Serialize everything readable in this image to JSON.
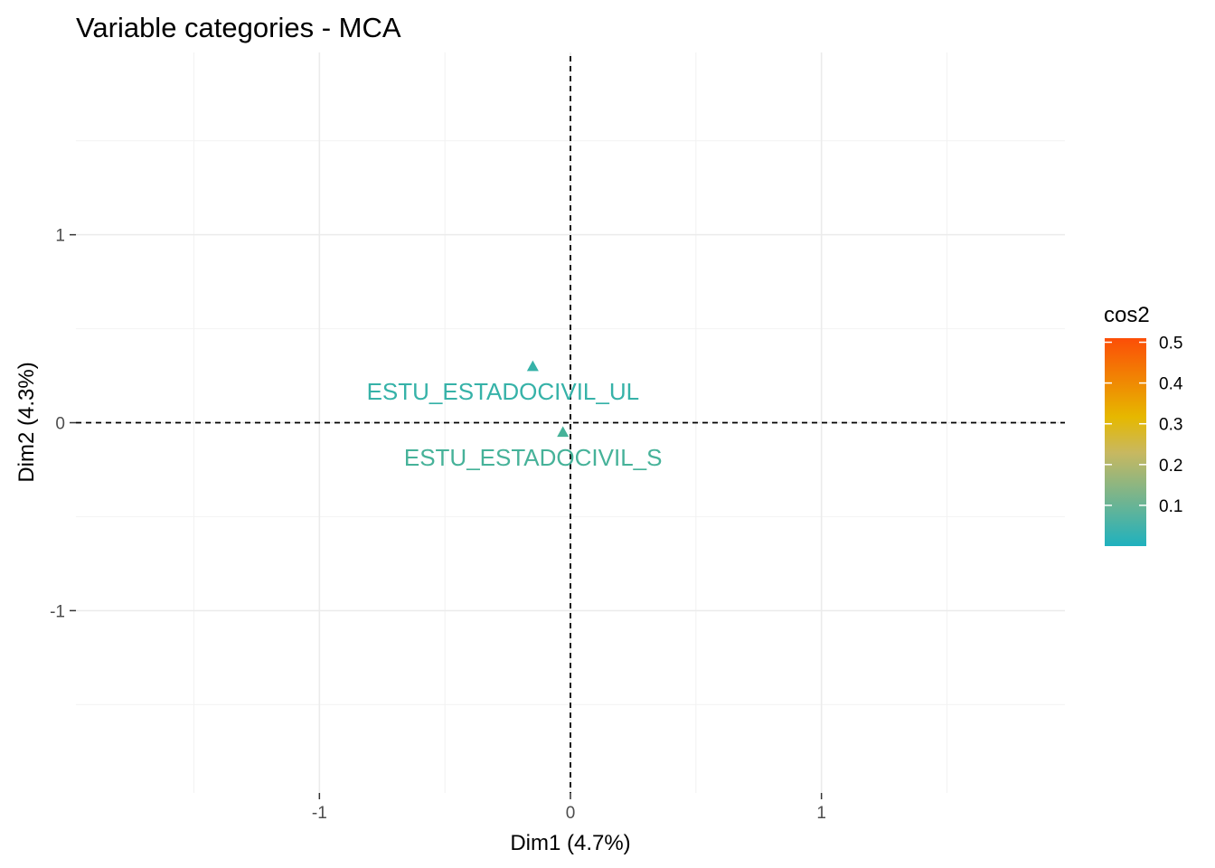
{
  "chart_data": {
    "type": "scatter",
    "title": "Variable categories - MCA",
    "xlabel": "Dim1 (4.7%)",
    "ylabel": "Dim2 (4.3%)",
    "xlim": [
      -1.97,
      1.97
    ],
    "ylim": [
      -1.97,
      1.97
    ],
    "x_ticks": [
      -1,
      0,
      1
    ],
    "x_tick_labels": [
      "-1",
      "0",
      "1"
    ],
    "y_ticks": [
      1,
      0,
      -1
    ],
    "y_tick_labels": [
      "1",
      "0",
      "-1"
    ],
    "x_minor_grid": [
      -1.5,
      -0.5,
      0.5,
      1.5
    ],
    "y_minor_grid": [
      1.5,
      0.5,
      -0.5,
      -1.5
    ],
    "grid": true,
    "reference_lines": {
      "x": 0,
      "y": 0,
      "style": "dashed"
    },
    "marker": "triangle",
    "points": [
      {
        "label": "ESTU_ESTADOCIVIL_UL",
        "x": -0.15,
        "y": 0.3,
        "cos2": 0.03
      },
      {
        "label": "ESTU_ESTADOCIVIL_S",
        "x": -0.03,
        "y": -0.05,
        "cos2": 0.05
      }
    ],
    "color_scale": {
      "title": "cos2",
      "min": 0.0,
      "max": 0.51,
      "ticks": [
        0.1,
        0.2,
        0.3,
        0.4,
        0.5
      ],
      "tick_labels": [
        "0.1",
        "0.2",
        "0.3",
        "0.4",
        "0.5"
      ],
      "colors": [
        "#1fb1be",
        "#e6b800",
        "#fc4e07"
      ],
      "position": "right"
    }
  }
}
